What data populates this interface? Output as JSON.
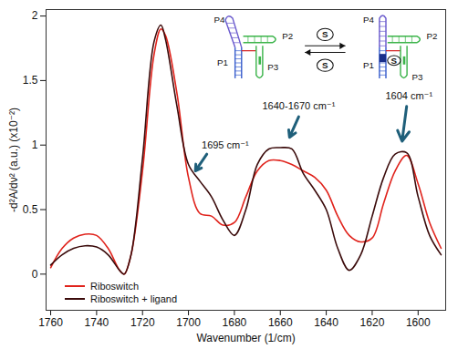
{
  "chart_data": {
    "type": "line",
    "x_label": "Wavenumber (1/cm)",
    "y_label": "-d²A/dν² (a.u.) (x10⁻²)",
    "xlim": [
      1762,
      1588
    ],
    "xticks": [
      1760,
      1740,
      1720,
      1700,
      1680,
      1660,
      1640,
      1620,
      1600
    ],
    "ylim": [
      -0.28,
      2.05
    ],
    "yticks": [
      0,
      0.5,
      1,
      1.5,
      2
    ],
    "legend": "lower left",
    "x": [
      1760,
      1755,
      1750,
      1745,
      1740,
      1735,
      1730,
      1728,
      1725,
      1720,
      1715,
      1712,
      1710,
      1705,
      1700,
      1695,
      1690,
      1685,
      1680,
      1675,
      1670,
      1665,
      1660,
      1655,
      1650,
      1645,
      1640,
      1635,
      1630,
      1625,
      1620,
      1615,
      1610,
      1605,
      1600,
      1595,
      1590
    ],
    "series": [
      {
        "name": "Riboswitch",
        "color": "#e0231c",
        "values": [
          0.05,
          0.2,
          0.28,
          0.31,
          0.3,
          0.2,
          0.03,
          0,
          0.15,
          0.8,
          1.7,
          1.9,
          1.85,
          1.4,
          0.75,
          0.47,
          0.45,
          0.38,
          0.4,
          0.6,
          0.8,
          0.88,
          0.88,
          0.85,
          0.8,
          0.75,
          0.65,
          0.45,
          0.3,
          0.25,
          0.28,
          0.55,
          0.8,
          0.92,
          0.7,
          0.4,
          0.2
        ]
      },
      {
        "name": "Riboswitch + ligand",
        "color": "#3b0b0b",
        "values": [
          0.07,
          0.15,
          0.2,
          0.22,
          0.21,
          0.15,
          0.03,
          0,
          0.15,
          0.9,
          1.8,
          1.93,
          1.82,
          1.3,
          0.85,
          0.72,
          0.6,
          0.42,
          0.3,
          0.5,
          0.85,
          0.97,
          0.98,
          0.97,
          0.78,
          0.65,
          0.5,
          0.2,
          0.03,
          0.15,
          0.45,
          0.75,
          0.93,
          0.94,
          0.6,
          0.3,
          0.15
        ]
      }
    ],
    "annotations": [
      {
        "text": "1695 cm⁻¹",
        "x": 1684,
        "y": 1.0,
        "arrow_from": [
          1692,
          0.93
        ],
        "arrow_to": [
          1697,
          0.8
        ]
      },
      {
        "text": "1640-1670 cm⁻¹",
        "x": 1652,
        "y": 1.3,
        "arrow_from": [
          1652,
          1.22
        ],
        "arrow_to": [
          1656,
          1.06
        ]
      },
      {
        "text": "1604 cm⁻¹",
        "x": 1604,
        "y": 1.38,
        "arrow_from": [
          1605,
          1.3
        ],
        "arrow_to": [
          1607,
          1.03
        ]
      }
    ],
    "inset": {
      "unbound_labels": [
        "P4",
        "P1",
        "P2",
        "P3"
      ],
      "exchange_ligands": [
        "S",
        "S"
      ],
      "bound_labels": [
        "P4",
        "P1",
        "P2",
        "P3"
      ],
      "bound_ligand": "S"
    }
  }
}
